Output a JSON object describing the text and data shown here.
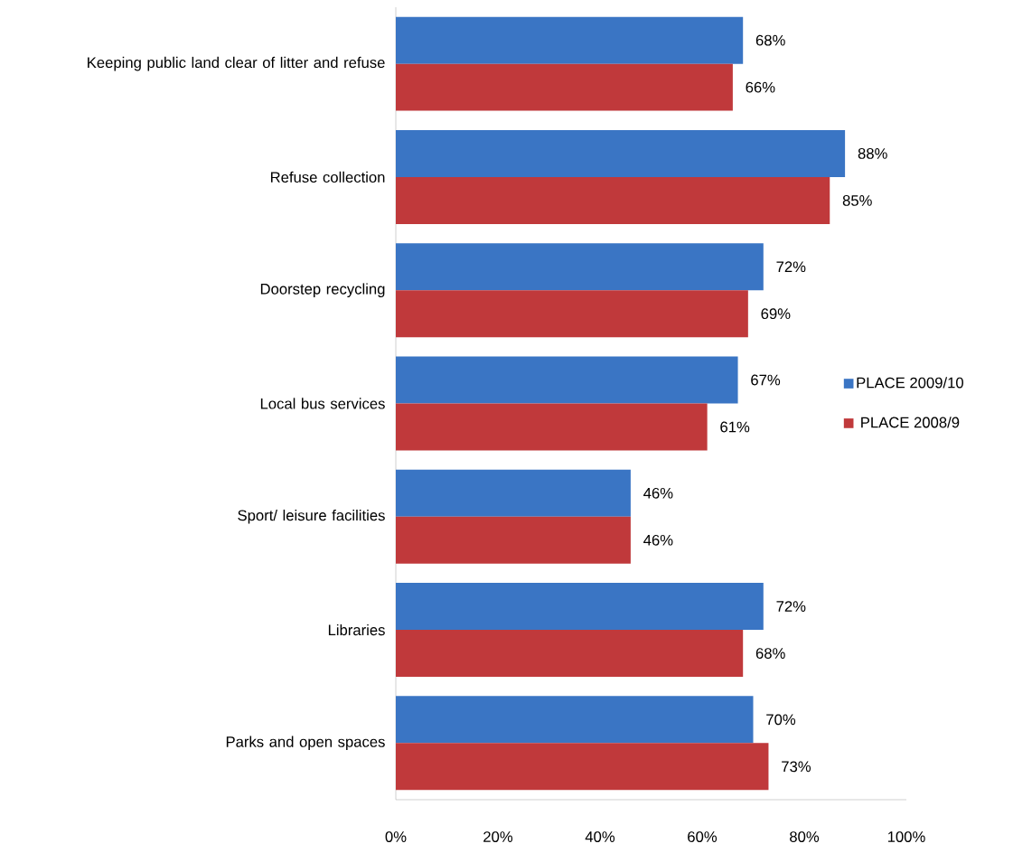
{
  "chart_data": {
    "type": "bar",
    "orientation": "horizontal",
    "categories": [
      "Keeping public land clear of litter and refuse",
      "Refuse collection",
      "Doorstep recycling",
      "Local bus services",
      "Sport/ leisure facilities",
      "Libraries",
      "Parks and open spaces"
    ],
    "series": [
      {
        "name": "PLACE 2009/10",
        "color": "#3a75c4",
        "values": [
          68,
          88,
          72,
          67,
          46,
          72,
          70
        ],
        "value_labels": [
          "68%",
          "88%",
          "72%",
          "67%",
          "46%",
          "72%",
          "70%"
        ]
      },
      {
        "name": "PLACE 2008/9",
        "color": "#c0393b",
        "values": [
          66,
          85,
          69,
          61,
          46,
          68,
          73
        ],
        "value_labels": [
          "66%",
          "85%",
          "69%",
          "61%",
          "46%",
          "68%",
          "73%"
        ]
      }
    ],
    "xlim": [
      0,
      100
    ],
    "xticks": [
      {
        "value": 0,
        "label": "0%"
      },
      {
        "value": 20,
        "label": "20%"
      },
      {
        "value": 40,
        "label": "40%"
      },
      {
        "value": 60,
        "label": "60%"
      },
      {
        "value": 80,
        "label": "80%"
      },
      {
        "value": 100,
        "label": "100%"
      }
    ],
    "legend": "right"
  }
}
